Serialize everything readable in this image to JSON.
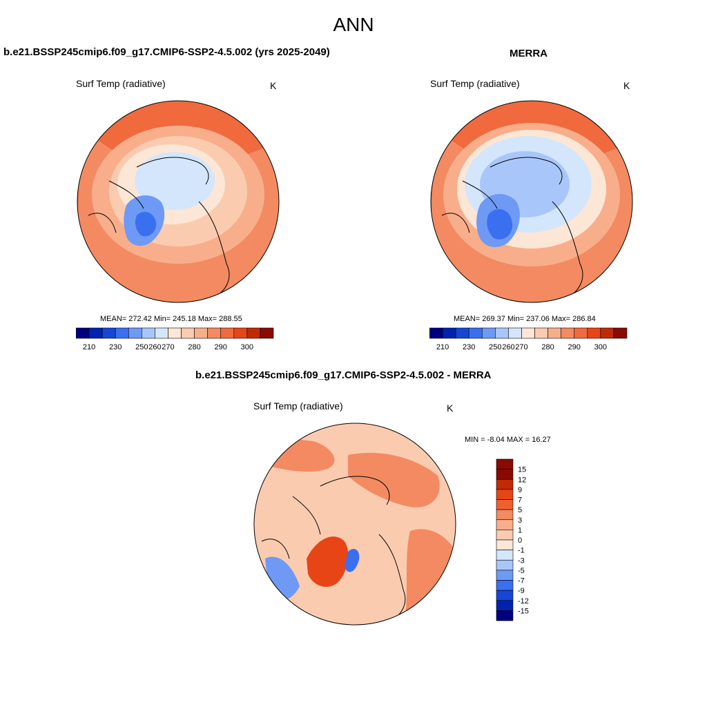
{
  "figure": {
    "title": "ANN"
  },
  "panel_model": {
    "title": "b.e21.BSSP245cmip6.f09_g17.CMIP6-SSP2-4.5.002 (yrs 2025-2049)",
    "variable": "Surf Temp (radiative)",
    "units": "K",
    "stats_text": "MEAN= 272.42  Min= 245.18  Max= 288.55",
    "colorbar_labels": [
      "210",
      "230",
      "250",
      "260",
      "270",
      "280",
      "290",
      "300"
    ]
  },
  "panel_obs": {
    "title": "MERRA",
    "variable": "Surf Temp (radiative)",
    "units": "K",
    "stats_text": "MEAN= 269.37  Min= 237.06  Max= 286.84",
    "colorbar_labels": [
      "210",
      "230",
      "250",
      "260",
      "270",
      "280",
      "290",
      "300"
    ]
  },
  "panel_diff": {
    "title": "b.e21.BSSP245cmip6.f09_g17.CMIP6-SSP2-4.5.002 - MERRA",
    "variable": "Surf Temp (radiative)",
    "units": "K",
    "minmax_text": "MIN =  -8.04 MAX =  16.27",
    "colorbar_labels": [
      "15",
      "12",
      "9",
      "7",
      "5",
      "3",
      "1",
      "0",
      "-1",
      "-3",
      "-5",
      "-7",
      "-9",
      "-12",
      "-15"
    ]
  },
  "colors": {
    "abs_scale": [
      "#00007f",
      "#0022b0",
      "#1546d6",
      "#3a70f0",
      "#6e9af5",
      "#a9c6fb",
      "#d4e6fc",
      "#fce6d6",
      "#fbcbb0",
      "#f8ae8b",
      "#f38a62",
      "#f06a3e",
      "#e84517",
      "#c22a05",
      "#8a0a02"
    ],
    "diff_scale": [
      "#8a0a02",
      "#c22a05",
      "#e84517",
      "#f0602e",
      "#f38a62",
      "#f8ae8b",
      "#fbcbb0",
      "#fce6d6",
      "#d4e6fc",
      "#a9c6fb",
      "#6e9af5",
      "#3a70f0",
      "#1546d6",
      "#0022b0",
      "#00007f"
    ]
  },
  "chart_data": {
    "type": "map",
    "projection": "north polar stereographic",
    "season": "ANN",
    "maps": [
      {
        "name": "b.e21.BSSP245cmip6.f09_g17.CMIP6-SSP2-4.5.002 (yrs 2025-2049)",
        "variable": "Surf Temp (radiative)",
        "units": "K",
        "mean": 272.42,
        "min": 245.18,
        "max": 288.55
      },
      {
        "name": "MERRA",
        "variable": "Surf Temp (radiative)",
        "units": "K",
        "mean": 269.37,
        "min": 237.06,
        "max": 286.84
      },
      {
        "name": "b.e21.BSSP245cmip6.f09_g17.CMIP6-SSP2-4.5.002 - MERRA",
        "variable": "Surf Temp (radiative)",
        "units": "K",
        "min": -8.04,
        "max": 16.27
      }
    ],
    "abs_levels": [
      210,
      230,
      250,
      260,
      270,
      280,
      290,
      300
    ],
    "diff_levels": [
      15,
      12,
      9,
      7,
      5,
      3,
      1,
      0,
      -1,
      -3,
      -5,
      -7,
      -9,
      -12,
      -15
    ]
  }
}
